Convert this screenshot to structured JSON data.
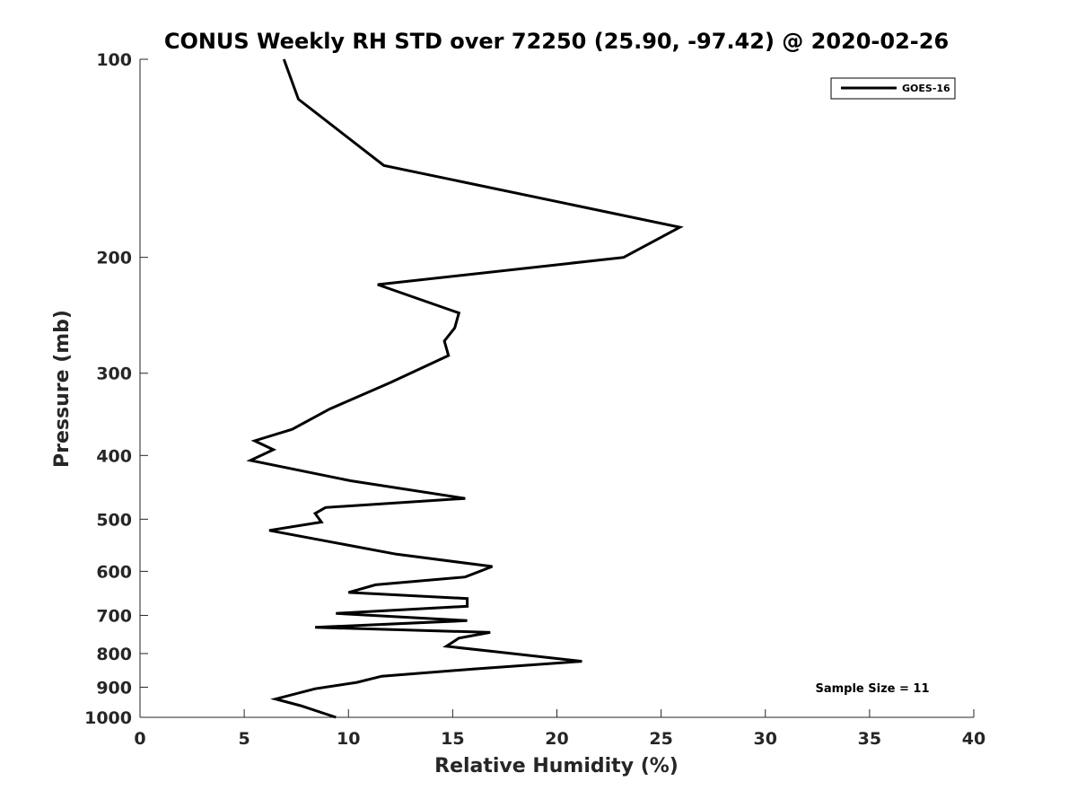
{
  "chart_data": {
    "type": "line",
    "title": "CONUS Weekly RH STD over 72250 (25.90, -97.42) @ 2020-02-26",
    "xlabel": "Relative Humidity (%)",
    "ylabel": "Pressure (mb)",
    "xlim": [
      0,
      40
    ],
    "ylim": [
      100,
      1000
    ],
    "yscale": "log",
    "y_reversed": true,
    "grid": false,
    "xticks": [
      0,
      5,
      10,
      15,
      20,
      25,
      30,
      35,
      40
    ],
    "xtick_labels": [
      "0",
      "5",
      "10",
      "15",
      "20",
      "25",
      "30",
      "35",
      "40"
    ],
    "yticks": [
      100,
      200,
      300,
      400,
      500,
      600,
      700,
      800,
      900,
      1000
    ],
    "ytick_labels": [
      "100",
      "200",
      "300",
      "400",
      "500",
      "600",
      "700",
      "800",
      "900",
      "1000"
    ],
    "legend": {
      "position": "top-right",
      "entries": [
        "GOES-16"
      ]
    },
    "annotation": "Sample Size = 11",
    "series": [
      {
        "name": "GOES-16",
        "color": "#000000",
        "x": [
          6.9,
          7.6,
          11.7,
          25.9,
          23.2,
          11.4,
          15.3,
          15.1,
          14.6,
          14.8,
          12.0,
          9.1,
          7.3,
          5.5,
          6.4,
          5.3,
          10.1,
          15.6,
          8.9,
          8.4,
          8.7,
          6.2,
          12.3,
          16.9,
          15.6,
          11.3,
          10.0,
          15.7,
          15.7,
          9.4,
          15.7,
          8.4,
          16.8,
          15.3,
          14.7,
          17.1,
          21.2,
          15.9,
          11.6,
          10.4,
          8.4,
          6.5,
          7.7,
          9.4
        ],
        "y": [
          100,
          115,
          145,
          180,
          200,
          220,
          243,
          256,
          268,
          282,
          310,
          340,
          365,
          380,
          392,
          407,
          437,
          465,
          480,
          490,
          505,
          520,
          565,
          590,
          612,
          629,
          646,
          660,
          678,
          695,
          713,
          730,
          743,
          758,
          780,
          795,
          822,
          845,
          866,
          885,
          905,
          938,
          960,
          1000
        ]
      }
    ]
  }
}
